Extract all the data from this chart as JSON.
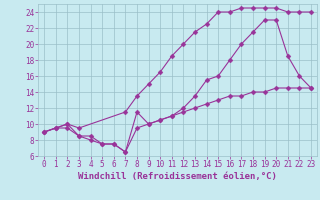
{
  "bg_color": "#c8eaf0",
  "grid_color": "#9bbfc8",
  "line_color": "#993399",
  "marker": "D",
  "marker_size": 2.5,
  "xlabel": "Windchill (Refroidissement éolien,°C)",
  "xlabel_color": "#993399",
  "xlabel_fontsize": 6.5,
  "tick_fontsize": 5.5,
  "xlim": [
    -0.5,
    23.5
  ],
  "ylim": [
    6,
    25
  ],
  "yticks": [
    6,
    8,
    10,
    12,
    14,
    16,
    18,
    20,
    22,
    24
  ],
  "xticks": [
    0,
    1,
    2,
    3,
    4,
    5,
    6,
    7,
    8,
    9,
    10,
    11,
    12,
    13,
    14,
    15,
    16,
    17,
    18,
    19,
    20,
    21,
    22,
    23
  ],
  "curve1_x": [
    0,
    1,
    2,
    3,
    7,
    8,
    9,
    10,
    11,
    12,
    13,
    14,
    15,
    16,
    17,
    18,
    19,
    20,
    21,
    22,
    23
  ],
  "curve1_y": [
    9,
    9.5,
    10,
    9.5,
    11.5,
    13.5,
    15,
    16.5,
    18.5,
    20,
    21.5,
    22.5,
    24,
    24,
    24.5,
    24.5,
    24.5,
    24.5,
    24,
    24,
    24
  ],
  "curve2_x": [
    0,
    1,
    2,
    3,
    4,
    5,
    6,
    7,
    8,
    9,
    10,
    11,
    12,
    13,
    14,
    15,
    16,
    17,
    18,
    19,
    20,
    21,
    22,
    23
  ],
  "curve2_y": [
    9,
    9.5,
    10,
    8.5,
    8.5,
    7.5,
    7.5,
    6.5,
    11.5,
    10,
    10.5,
    11,
    12,
    13.5,
    15.5,
    16,
    18,
    20,
    21.5,
    23,
    23,
    18.5,
    16,
    14.5
  ],
  "curve3_x": [
    0,
    1,
    2,
    3,
    4,
    5,
    6,
    7,
    8,
    9,
    10,
    11,
    12,
    13,
    14,
    15,
    16,
    17,
    18,
    19,
    20,
    21,
    22,
    23
  ],
  "curve3_y": [
    9,
    9.5,
    9.5,
    8.5,
    8,
    7.5,
    7.5,
    6.5,
    9.5,
    10,
    10.5,
    11,
    11.5,
    12,
    12.5,
    13,
    13.5,
    13.5,
    14,
    14,
    14.5,
    14.5,
    14.5,
    14.5
  ]
}
